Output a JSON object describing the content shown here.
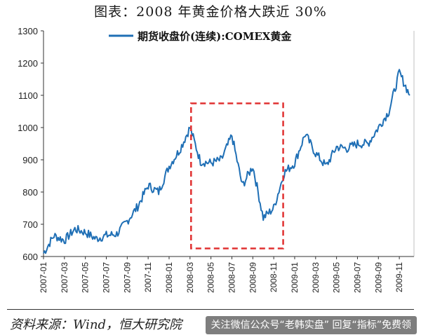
{
  "page": {
    "title": "图表：2008 年黄金价格大跌近 30%",
    "source": "资料来源：Wind，恒大研究院",
    "watermark": "关注微信公众号“老韩实盘” 回复“指标”免费领"
  },
  "colors": {
    "series": "#1f6fb5",
    "highlight_box": "#e03030",
    "axis": "#333333"
  },
  "chart_data": {
    "type": "line",
    "title": "",
    "xlabel": "",
    "ylabel": "",
    "ylim": [
      600,
      1300
    ],
    "y_ticks": [
      600,
      700,
      800,
      900,
      1000,
      1100,
      1200,
      1300
    ],
    "x_ticks": [
      "2007-01",
      "2007-03",
      "2007-05",
      "2007-07",
      "2007-09",
      "2007-11",
      "2008-01",
      "2008-03",
      "2008-05",
      "2008-07",
      "2008-09",
      "2008-11",
      "2009-01",
      "2009-03",
      "2009-05",
      "2009-07",
      "2009-09",
      "2009-11"
    ],
    "legend": "top-center",
    "grid": false,
    "series": [
      {
        "name": "期货收盘价(连续):COMEX黄金",
        "x": [
          "2007-01",
          "2007-02",
          "2007-03",
          "2007-04",
          "2007-05",
          "2007-06",
          "2007-07",
          "2007-08",
          "2007-09",
          "2007-10",
          "2007-11",
          "2007-12",
          "2008-01",
          "2008-02",
          "2008-03",
          "2008-04",
          "2008-05",
          "2008-06",
          "2008-07",
          "2008-08",
          "2008-09",
          "2008-10",
          "2008-11",
          "2008-12",
          "2009-01",
          "2009-02",
          "2009-03",
          "2009-04",
          "2009-05",
          "2009-06",
          "2009-07",
          "2009-08",
          "2009-09",
          "2009-10",
          "2009-11",
          "2009-12"
        ],
        "values": [
          610,
          665,
          650,
          685,
          675,
          655,
          665,
          670,
          710,
          755,
          820,
          800,
          880,
          930,
          1000,
          895,
          890,
          900,
          975,
          820,
          880,
          720,
          750,
          860,
          890,
          980,
          920,
          880,
          940,
          935,
          950,
          950,
          1000,
          1050,
          1170,
          1100
        ]
      }
    ],
    "annotations": [
      {
        "type": "dashed-box",
        "x_start": "2008-03",
        "x_end": "2008-12",
        "y_low": 625,
        "y_high": 1075
      }
    ]
  }
}
